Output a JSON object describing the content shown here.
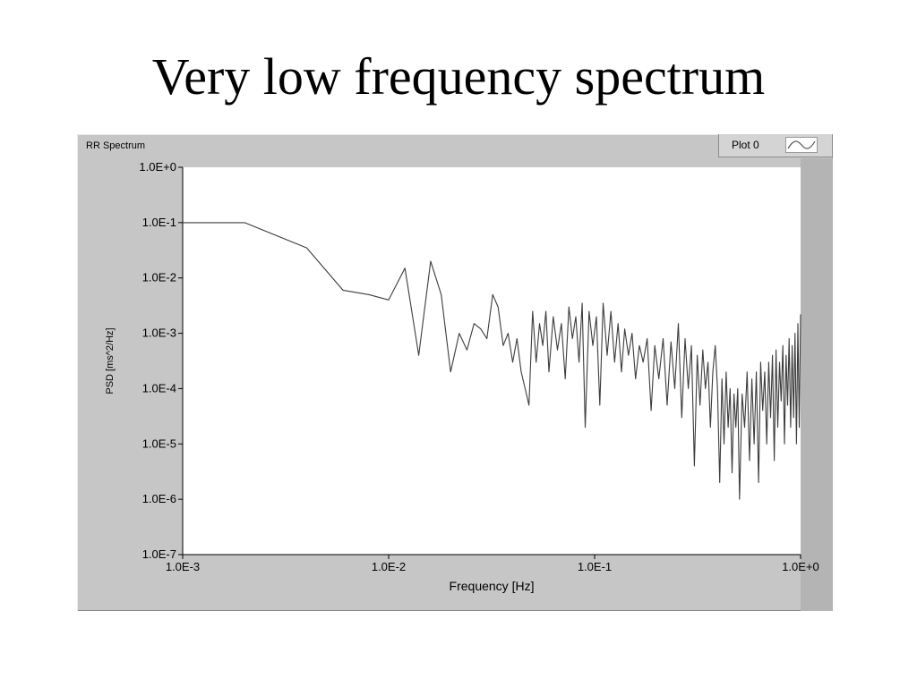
{
  "slide": {
    "title": "Very low frequency spectrum"
  },
  "graph": {
    "label": "RR Spectrum",
    "legend_label": "Plot 0"
  },
  "colors": {
    "panel": "#c6c6c6",
    "plot_area": "#ffffff",
    "trace": "#3c3c3c"
  },
  "icons": {
    "legend_swatch": "line-sample-icon"
  },
  "chart_data": {
    "type": "line",
    "title": "",
    "xlabel": "Frequency [Hz]",
    "ylabel": "PSD [ms^2/Hz]",
    "x_scale": "log",
    "y_scale": "log",
    "xlim": [
      0.001,
      1.0
    ],
    "ylim": [
      1e-07,
      1.0
    ],
    "grid": false,
    "legend": "top-right",
    "x_ticks": [
      {
        "value": 0.001,
        "label": "1.0E-3"
      },
      {
        "value": 0.01,
        "label": "1.0E-2"
      },
      {
        "value": 0.1,
        "label": "1.0E-1"
      },
      {
        "value": 1.0,
        "label": "1.0E+0"
      }
    ],
    "y_ticks": [
      {
        "value": 1.0,
        "label": "1.0E+0"
      },
      {
        "value": 0.1,
        "label": "1.0E-1"
      },
      {
        "value": 0.01,
        "label": "1.0E-2"
      },
      {
        "value": 0.001,
        "label": "1.0E-3"
      },
      {
        "value": 0.0001,
        "label": "1.0E-4"
      },
      {
        "value": 1e-05,
        "label": "1.0E-5"
      },
      {
        "value": 1e-06,
        "label": "1.0E-6"
      },
      {
        "value": 1e-07,
        "label": "1.0E-7"
      }
    ],
    "series": [
      {
        "name": "Plot 0",
        "x": [
          0.001,
          0.002,
          0.004,
          0.006,
          0.008,
          0.01,
          0.012,
          0.014,
          0.016,
          0.018,
          0.02,
          0.022,
          0.024,
          0.026,
          0.028,
          0.03,
          0.032,
          0.034,
          0.036,
          0.038,
          0.04,
          0.042,
          0.044,
          0.046,
          0.048,
          0.05,
          0.052,
          0.054,
          0.056,
          0.058,
          0.06,
          0.063,
          0.066,
          0.069,
          0.072,
          0.075,
          0.078,
          0.081,
          0.084,
          0.087,
          0.09,
          0.094,
          0.098,
          0.102,
          0.106,
          0.11,
          0.115,
          0.12,
          0.125,
          0.13,
          0.135,
          0.14,
          0.146,
          0.152,
          0.158,
          0.165,
          0.172,
          0.18,
          0.188,
          0.196,
          0.205,
          0.215,
          0.225,
          0.235,
          0.245,
          0.255,
          0.265,
          0.275,
          0.285,
          0.295,
          0.305,
          0.315,
          0.325,
          0.335,
          0.345,
          0.355,
          0.365,
          0.375,
          0.385,
          0.395,
          0.405,
          0.415,
          0.425,
          0.435,
          0.445,
          0.455,
          0.465,
          0.475,
          0.485,
          0.495,
          0.505,
          0.52,
          0.535,
          0.55,
          0.565,
          0.58,
          0.595,
          0.61,
          0.625,
          0.64,
          0.655,
          0.67,
          0.685,
          0.7,
          0.715,
          0.73,
          0.745,
          0.76,
          0.775,
          0.79,
          0.805,
          0.82,
          0.835,
          0.85,
          0.865,
          0.88,
          0.895,
          0.91,
          0.925,
          0.94,
          0.955,
          0.97,
          0.985,
          1.0
        ],
        "y": [
          0.1,
          0.1,
          0.035,
          0.006,
          0.005,
          0.004,
          0.015,
          0.0004,
          0.02,
          0.005,
          0.0002,
          0.001,
          0.0005,
          0.0015,
          0.0012,
          0.0008,
          0.005,
          0.003,
          0.0006,
          0.001,
          0.0003,
          0.0008,
          0.0002,
          0.0001,
          5e-05,
          0.0025,
          0.0003,
          0.0015,
          0.0006,
          0.0025,
          0.0002,
          0.002,
          0.0005,
          0.0015,
          0.00015,
          0.003,
          0.0008,
          0.002,
          0.0003,
          0.0035,
          2e-05,
          0.0025,
          0.0006,
          0.002,
          5e-05,
          0.0035,
          0.0004,
          0.0025,
          0.0003,
          0.0015,
          0.0002,
          0.0012,
          0.0004,
          0.001,
          0.00015,
          0.0006,
          0.0003,
          0.0008,
          4e-05,
          0.0006,
          0.00015,
          0.0008,
          5e-05,
          0.0007,
          0.0001,
          0.0015,
          3e-05,
          0.0008,
          0.0001,
          0.0006,
          4e-06,
          0.0004,
          5e-05,
          0.0005,
          0.0001,
          0.0003,
          2e-05,
          0.0002,
          0.0006,
          0.0001,
          2e-06,
          0.00015,
          1e-05,
          0.0002,
          2e-05,
          0.0001,
          3e-06,
          8e-05,
          2e-05,
          0.0001,
          1e-06,
          8e-05,
          2e-05,
          0.0002,
          5e-06,
          0.00015,
          1e-05,
          0.0002,
          2e-06,
          0.0003,
          4e-05,
          0.0002,
          1e-05,
          0.0003,
          3e-05,
          0.0004,
          5e-06,
          0.0005,
          2e-05,
          0.0003,
          6e-05,
          0.0006,
          1e-05,
          0.0004,
          5e-05,
          0.0008,
          2e-05,
          0.0006,
          3e-05,
          0.001,
          1e-05,
          0.0015,
          2e-05,
          0.0022
        ]
      }
    ]
  }
}
